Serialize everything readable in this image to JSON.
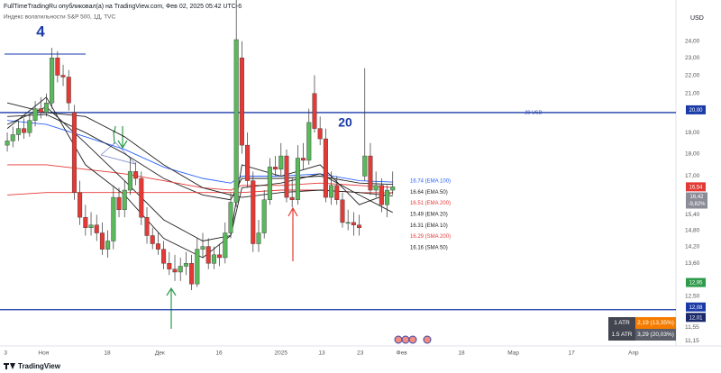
{
  "chart_data": {
    "type": "candlestick",
    "title": "FullTimeTradingRu опубликовал(а) на TradingView.com, Фев 02, 2025 05:42 UTC-6",
    "subtitle": "Индекс волатильности S&P 500, 1Д, TVC",
    "currency": "USD",
    "footer": "TradingView",
    "log_scale": true,
    "grid": false,
    "up_color": "#5cb85c",
    "down_color": "#e53935",
    "open": [
      18.4,
      18.6,
      18.9,
      19.2,
      19.0,
      19.6,
      20.2,
      20.0,
      20.5,
      23.0,
      22.0,
      21.9,
      20.0,
      16.3,
      15.3,
      14.9,
      15.0,
      14.7,
      14.1,
      14.4,
      16.1,
      15.6,
      16.4,
      17.2,
      16.9,
      15.3,
      14.6,
      14.3,
      14.1,
      13.6,
      13.4,
      13.3,
      13.5,
      13.6,
      12.9,
      14.1,
      14.2,
      13.6,
      13.9,
      13.8,
      14.7,
      15.9,
      23.0,
      18.4,
      16.8,
      14.3,
      14.7,
      16.0,
      17.4,
      17.3,
      17.9,
      16.1,
      16.0,
      17.8,
      17.7,
      21.0,
      19.2,
      18.7,
      16.1,
      16.6,
      16.0,
      15.1,
      15.1,
      15.0,
      17.0,
      17.9,
      16.4,
      16.6,
      15.8,
      16.4
    ],
    "high": [
      19.0,
      19.3,
      19.6,
      19.7,
      19.9,
      20.6,
      20.8,
      21.0,
      23.6,
      23.4,
      22.6,
      22.3,
      20.4,
      16.8,
      15.8,
      15.5,
      15.4,
      15.1,
      14.8,
      16.6,
      16.5,
      16.8,
      17.8,
      17.6,
      17.2,
      15.7,
      14.9,
      14.7,
      14.4,
      14.0,
      13.9,
      13.8,
      14.0,
      13.9,
      14.5,
      14.7,
      14.5,
      14.2,
      14.3,
      15.1,
      16.3,
      27.6,
      24.0,
      19.0,
      17.2,
      15.2,
      16.4,
      17.8,
      17.9,
      18.5,
      18.2,
      16.9,
      18.4,
      18.5,
      20.2,
      22.0,
      19.8,
      19.2,
      17.2,
      17.0,
      16.3,
      15.6,
      15.5,
      15.4,
      22.4,
      18.5,
      17.2,
      16.9,
      16.6,
      17.2
    ],
    "low": [
      18.1,
      18.3,
      18.6,
      18.7,
      18.8,
      19.3,
      19.7,
      19.8,
      20.2,
      21.6,
      21.4,
      20.1,
      16.0,
      15.0,
      14.6,
      14.6,
      14.4,
      13.9,
      13.8,
      14.1,
      15.3,
      15.3,
      16.2,
      16.6,
      15.0,
      14.3,
      14.1,
      13.9,
      13.4,
      13.2,
      13.0,
      13.0,
      13.2,
      12.7,
      12.8,
      13.8,
      13.4,
      13.4,
      13.5,
      13.6,
      14.5,
      15.7,
      18.0,
      16.5,
      14.0,
      14.0,
      14.5,
      15.8,
      17.0,
      17.0,
      15.9,
      15.7,
      15.8,
      17.3,
      17.5,
      19.0,
      18.4,
      15.9,
      15.8,
      15.8,
      14.9,
      14.8,
      14.6,
      14.6,
      16.8,
      16.2,
      16.1,
      15.5,
      15.3,
      16.2
    ],
    "close": [
      18.6,
      18.9,
      19.2,
      19.0,
      19.6,
      20.2,
      20.0,
      20.5,
      23.0,
      22.0,
      21.9,
      20.5,
      16.3,
      15.3,
      14.9,
      15.0,
      14.7,
      14.1,
      14.4,
      16.1,
      15.6,
      16.4,
      17.2,
      16.9,
      15.3,
      14.6,
      14.3,
      14.1,
      13.6,
      13.4,
      13.3,
      13.5,
      13.6,
      12.9,
      14.1,
      14.2,
      13.6,
      13.9,
      13.8,
      14.7,
      15.9,
      24.1,
      18.4,
      16.8,
      14.3,
      14.7,
      16.0,
      17.4,
      17.3,
      17.9,
      16.1,
      16.0,
      17.8,
      17.7,
      19.5,
      19.2,
      18.7,
      16.1,
      16.6,
      16.0,
      15.1,
      15.1,
      15.0,
      14.9,
      17.9,
      16.4,
      16.6,
      15.8,
      16.4,
      16.54
    ],
    "xlim": [
      -1.3,
      119.7
    ],
    "ylim": [
      11.01,
      26.67
    ],
    "xticks": [
      {
        "value": -0.3,
        "label": "3"
      },
      {
        "value": 6.5,
        "label": "Ноя"
      },
      {
        "value": 17.9,
        "label": "18"
      },
      {
        "value": 27.3,
        "label": "Дек"
      },
      {
        "value": 37.9,
        "label": "16"
      },
      {
        "value": 49,
        "label": "2025"
      },
      {
        "value": 56.3,
        "label": "13"
      },
      {
        "value": 63.2,
        "label": "23"
      },
      {
        "value": 70.6,
        "label": "Фев"
      },
      {
        "value": 81.3,
        "label": "18"
      },
      {
        "value": 90.6,
        "label": "Мар"
      },
      {
        "value": 101,
        "label": "17"
      },
      {
        "value": 112.1,
        "label": "Апр"
      }
    ],
    "yticks": [
      {
        "value": 24,
        "label": "24,00"
      },
      {
        "value": 23,
        "label": "23,00"
      },
      {
        "value": 22,
        "label": "22,00"
      },
      {
        "value": 21,
        "label": "21,00"
      },
      {
        "value": 19,
        "label": "19,00"
      },
      {
        "value": 18,
        "label": "18,00"
      },
      {
        "value": 17,
        "label": "17,00"
      },
      {
        "value": 15.4,
        "label": "15,40"
      },
      {
        "value": 14.8,
        "label": "14,80"
      },
      {
        "value": 14.2,
        "label": "14,20"
      },
      {
        "value": 13.6,
        "label": "13,60"
      },
      {
        "value": 12.5,
        "label": "12,50"
      },
      {
        "value": 11.55,
        "label": "11,55"
      },
      {
        "value": 11.15,
        "label": "11,15"
      }
    ],
    "ma_x": [
      0,
      7,
      14,
      21,
      28,
      35,
      40,
      42,
      49,
      56,
      63,
      69
    ],
    "ma_series": [
      {
        "name": "16.74 (EMA 100)",
        "color": "#2962ff",
        "values": [
          19.6,
          19.4,
          18.8,
          18.2,
          17.4,
          16.9,
          16.7,
          17.0,
          17.0,
          17.1,
          16.8,
          16.74
        ]
      },
      {
        "name": "16.64 (EMA 50)",
        "color": "#222222",
        "values": [
          19.8,
          19.9,
          19.0,
          18.0,
          16.9,
          16.2,
          16.0,
          16.9,
          16.9,
          17.0,
          16.7,
          16.64
        ]
      },
      {
        "name": "16.51 (EMA 200)",
        "color": "#e53935",
        "values": [
          17.5,
          17.5,
          17.3,
          17.1,
          16.8,
          16.5,
          16.4,
          16.6,
          16.6,
          16.7,
          16.6,
          16.51
        ]
      },
      {
        "name": "15.49 (EMA 20)",
        "color": "#222222",
        "values": [
          19.4,
          20.3,
          18.5,
          16.8,
          15.2,
          14.4,
          14.6,
          16.5,
          16.7,
          17.1,
          16.2,
          15.49
        ]
      },
      {
        "name": "16.31 (EMA 10)",
        "color": "#222222",
        "values": [
          19.2,
          20.8,
          17.5,
          16.2,
          14.5,
          13.8,
          14.6,
          17.5,
          17.0,
          17.5,
          15.8,
          16.31
        ]
      },
      {
        "name": "16.29 (SMA 200)",
        "color": "#e53935",
        "values": [
          16.2,
          16.3,
          16.3,
          16.3,
          16.3,
          16.3,
          16.3,
          16.3,
          16.4,
          16.4,
          16.3,
          16.29
        ]
      },
      {
        "name": "16.16 (SMA 50)",
        "color": "#222222",
        "values": [
          20.5,
          20.0,
          19.8,
          18.8,
          17.5,
          16.5,
          16.2,
          16.1,
          16.3,
          16.4,
          16.3,
          16.16
        ]
      }
    ],
    "hlines": [
      {
        "value": 20,
        "label": "20,00",
        "color": "#1a3aa8"
      },
      {
        "value": 12.08,
        "label": "12,08",
        "color": "#1a3aa8"
      }
    ],
    "price_labels": [
      {
        "value": 16.54,
        "label": "16,54",
        "color": "#e53935"
      },
      {
        "value": 16.42,
        "label": "16,42",
        "color": "#8a8d96"
      },
      {
        "value": 12.95,
        "label": "12,95",
        "color": "#2e9b4a"
      },
      {
        "value": 12.01,
        "label": "12,01",
        "color": "#1a2a6c"
      }
    ],
    "change_label": "-9,82%",
    "annotations": [
      {
        "text": "4"
      },
      {
        "text": "20"
      },
      {
        "text": "20 USD"
      }
    ],
    "atr": [
      {
        "name": "1 ATR",
        "value_label": "2,19 (13,35%)",
        "color": "#f57c00"
      },
      {
        "name": "1.5 ATR",
        "value_label": "3,29 (20,03%)",
        "color": "#5d606b"
      }
    ]
  }
}
